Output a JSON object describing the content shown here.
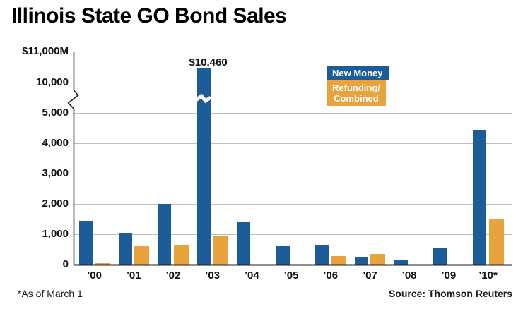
{
  "title": "Illinois State GO Bond Sales",
  "footnote": "*As of March 1",
  "source": "Source: Thomson Reuters",
  "colors": {
    "new_money_blue": "#1B5C99",
    "refunding_orange": "#E8A33C",
    "gridline_gray": "#BFBFBF",
    "axis_dark": "#231F20",
    "background": "#FFFFFF"
  },
  "legend": [
    {
      "label": "New Money",
      "color": "#1B5C99"
    },
    {
      "label": "Refunding/\nCombined",
      "color": "#E8A33C"
    }
  ],
  "chart_data": {
    "type": "bar",
    "title": "Illinois State GO Bond Sales",
    "categories": [
      "’00",
      "’01",
      "’02",
      "’03",
      "’04",
      "’05",
      "’06",
      "’07",
      "’08",
      "’09",
      "’10*"
    ],
    "series": [
      {
        "name": "New Money",
        "color": "#1B5C99",
        "values": [
          1450,
          1050,
          2000,
          10460,
          1400,
          600,
          650,
          250,
          150,
          550,
          4450
        ]
      },
      {
        "name": "Refunding/Combined",
        "color": "#E8A33C",
        "values": [
          50,
          600,
          650,
          950,
          0,
          0,
          275,
          350,
          0,
          0,
          1500
        ]
      }
    ],
    "ylabel": "$ millions",
    "yticks": {
      "labels": [
        "$11,000M",
        "10,000",
        "5,000",
        "4,000",
        "3,000",
        "2,000",
        "1,000",
        "0"
      ],
      "values": [
        11000,
        10000,
        5000,
        4000,
        3000,
        2000,
        1000,
        0
      ]
    },
    "ylim": [
      0,
      11000
    ],
    "axis_break": {
      "between": [
        5000,
        10000
      ],
      "broken_bar_category": "’03"
    },
    "grid": true,
    "legend_position": "upper-right-inside",
    "annotations": [
      {
        "category": "’03",
        "series": "New Money",
        "text": "$10,460",
        "value": 10460
      }
    ]
  }
}
